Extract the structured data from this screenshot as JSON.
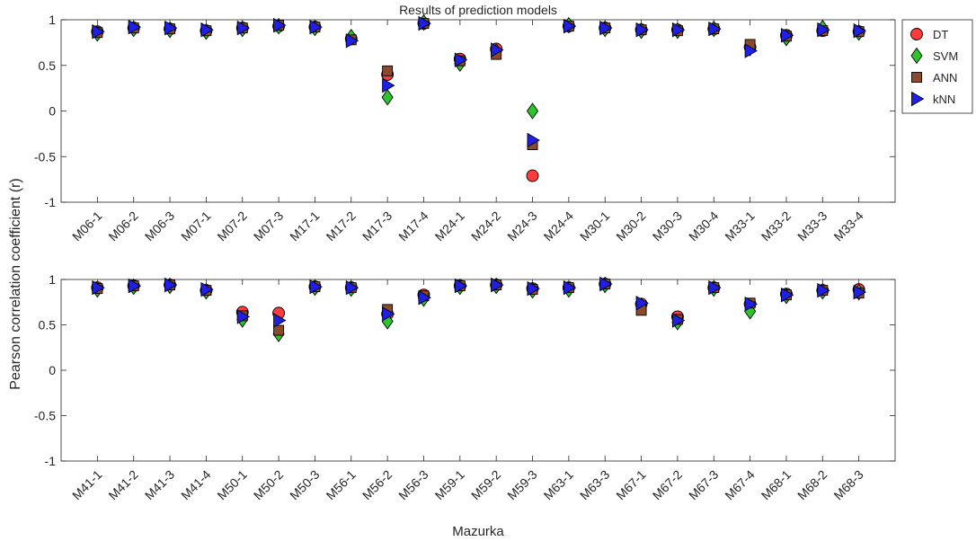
{
  "chart_data": [
    {
      "type": "scatter",
      "title": "Results of prediction models",
      "xlabel": "",
      "ylabel": "",
      "ylim": [
        -1,
        1
      ],
      "yticks": [
        -1,
        -0.5,
        0,
        0.5,
        1
      ],
      "ytick_labels": [
        "-1",
        "-0.5",
        "0",
        "0.5",
        "1"
      ],
      "grid": false,
      "legend_position": "outside-top-right",
      "categories": [
        "M06-1",
        "M06-2",
        "M06-3",
        "M07-1",
        "M07-2",
        "M07-3",
        "M17-1",
        "M17-2",
        "M17-3",
        "M17-4",
        "M24-1",
        "M24-2",
        "M24-3",
        "M24-4",
        "M30-1",
        "M30-2",
        "M30-3",
        "M30-4",
        "M33-1",
        "M33-2",
        "M33-3",
        "M33-4"
      ],
      "series": [
        {
          "name": "DT",
          "values": [
            0.87,
            0.91,
            0.9,
            0.88,
            0.91,
            0.93,
            0.92,
            0.79,
            0.4,
            0.96,
            0.57,
            0.68,
            -0.71,
            0.93,
            0.91,
            0.89,
            0.89,
            0.9,
            0.7,
            0.83,
            0.88,
            0.87
          ]
        },
        {
          "name": "SVM",
          "values": [
            0.85,
            0.9,
            0.89,
            0.87,
            0.9,
            0.93,
            0.91,
            0.81,
            0.15,
            0.97,
            0.52,
            0.65,
            0.0,
            0.94,
            0.9,
            0.88,
            0.88,
            0.9,
            0.69,
            0.8,
            0.91,
            0.86
          ]
        },
        {
          "name": "ANN",
          "values": [
            0.86,
            0.91,
            0.9,
            0.88,
            0.91,
            0.94,
            0.92,
            0.78,
            0.44,
            0.96,
            0.55,
            0.62,
            -0.37,
            0.93,
            0.91,
            0.89,
            0.88,
            0.9,
            0.73,
            0.82,
            0.88,
            0.87
          ]
        },
        {
          "name": "kNN",
          "values": [
            0.87,
            0.92,
            0.91,
            0.89,
            0.91,
            0.94,
            0.92,
            0.77,
            0.28,
            0.96,
            0.56,
            0.67,
            -0.32,
            0.93,
            0.91,
            0.89,
            0.89,
            0.9,
            0.66,
            0.83,
            0.89,
            0.88
          ]
        }
      ]
    },
    {
      "type": "scatter",
      "title": "",
      "xlabel": "Mazurka",
      "ylabel": "",
      "ylim": [
        -1,
        1
      ],
      "yticks": [
        -1,
        -0.5,
        0,
        0.5,
        1
      ],
      "ytick_labels": [
        "-1",
        "-0.5",
        "0",
        "0.5",
        "1"
      ],
      "grid": false,
      "categories": [
        "M41-1",
        "M41-2",
        "M41-3",
        "M41-4",
        "M50-1",
        "M50-2",
        "M50-3",
        "M56-1",
        "M56-2",
        "M56-3",
        "M59-1",
        "M59-2",
        "M59-3",
        "M63-1",
        "M63-3",
        "M67-1",
        "M67-2",
        "M67-3",
        "M67-4",
        "M68-1",
        "M68-2",
        "M68-3"
      ],
      "series": [
        {
          "name": "DT",
          "values": [
            0.91,
            0.93,
            0.94,
            0.88,
            0.64,
            0.63,
            0.92,
            0.91,
            0.62,
            0.83,
            0.93,
            0.94,
            0.9,
            0.91,
            0.95,
            0.73,
            0.59,
            0.91,
            0.73,
            0.84,
            0.88,
            0.89
          ]
        },
        {
          "name": "SVM",
          "values": [
            0.89,
            0.92,
            0.93,
            0.87,
            0.56,
            0.4,
            0.91,
            0.9,
            0.54,
            0.79,
            0.92,
            0.93,
            0.88,
            0.89,
            0.94,
            0.71,
            0.53,
            0.9,
            0.65,
            0.82,
            0.87,
            0.86
          ]
        },
        {
          "name": "ANN",
          "values": [
            0.9,
            0.93,
            0.94,
            0.88,
            0.6,
            0.44,
            0.92,
            0.91,
            0.67,
            0.82,
            0.93,
            0.94,
            0.89,
            0.91,
            0.95,
            0.66,
            0.56,
            0.91,
            0.74,
            0.83,
            0.88,
            0.85
          ]
        },
        {
          "name": "kNN",
          "values": [
            0.91,
            0.93,
            0.94,
            0.89,
            0.59,
            0.55,
            0.92,
            0.91,
            0.62,
            0.8,
            0.93,
            0.94,
            0.9,
            0.91,
            0.95,
            0.74,
            0.55,
            0.91,
            0.73,
            0.83,
            0.88,
            0.86
          ]
        }
      ]
    }
  ],
  "shared": {
    "ylabel": "Pearson correlation coefficient (r)"
  },
  "legend": {
    "items": [
      {
        "label": "DT",
        "marker": "circle",
        "color": "#ff3b3b"
      },
      {
        "label": "SVM",
        "marker": "diamond",
        "color": "#2ec42e"
      },
      {
        "label": "ANN",
        "marker": "square",
        "color": "#8b4a2b"
      },
      {
        "label": "kNN",
        "marker": "triangle",
        "color": "#1f1fe6"
      }
    ]
  }
}
